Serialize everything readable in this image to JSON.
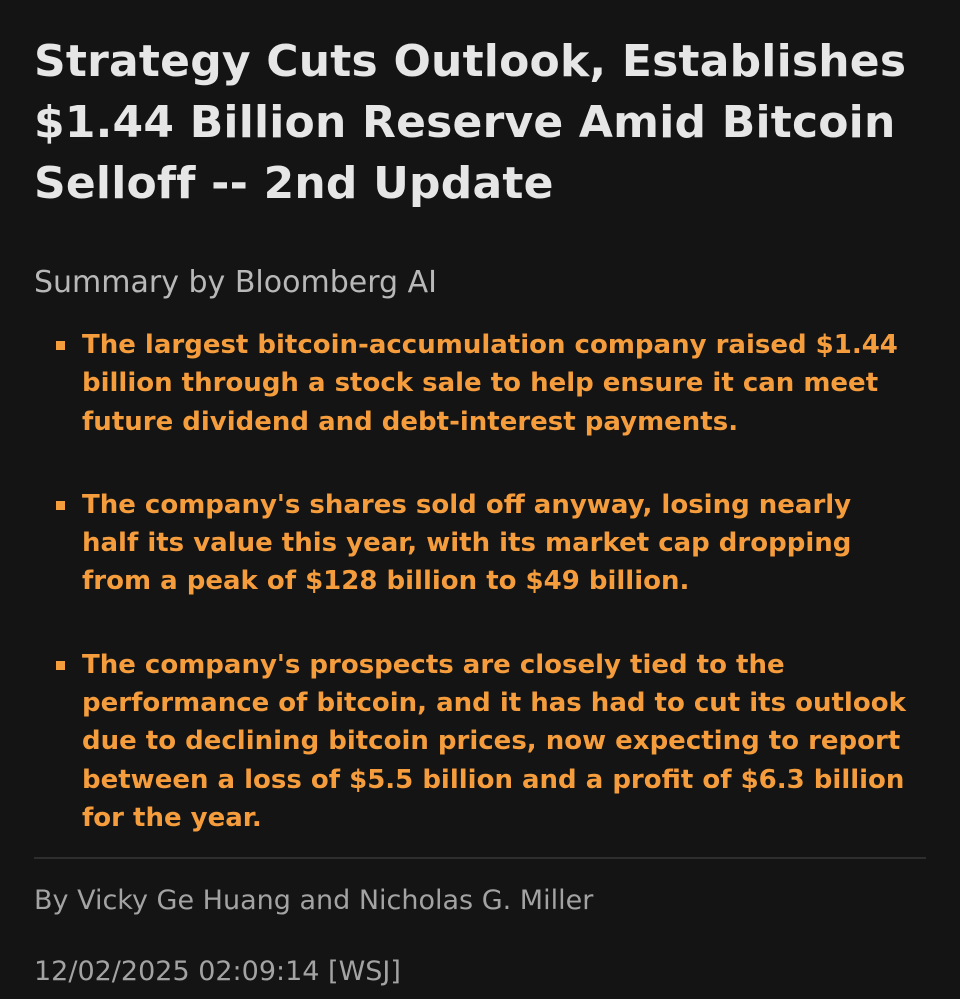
{
  "article": {
    "headline": "Strategy Cuts Outlook, Establishes $1.44 Billion Reserve Amid Bitcoin Selloff -- 2nd Update",
    "summary_label": "Summary by Bloomberg AI",
    "summary_points": [
      "The largest bitcoin-accumulation company raised $1.44 billion through a stock sale to help ensure it can meet future dividend and debt-interest payments.",
      "The company's shares sold off anyway, losing nearly half its value this year, with its market cap dropping from a peak of $128 billion to $49 billion.",
      "The company's prospects are closely tied to the performance of bitcoin, and it has had to cut its outlook due to declining bitcoin prices, now expecting to report between a loss of $5.5 billion and a profit of $6.3 billion for the year."
    ],
    "byline": "By Vicky Ge Huang and Nicholas G. Miller",
    "timestamp": "12/02/2025 02:09:14 [WSJ]"
  },
  "colors": {
    "background": "#141414",
    "headline": "#e6e6e6",
    "accent": "#f59d3d",
    "muted": "#a3a3a3"
  }
}
